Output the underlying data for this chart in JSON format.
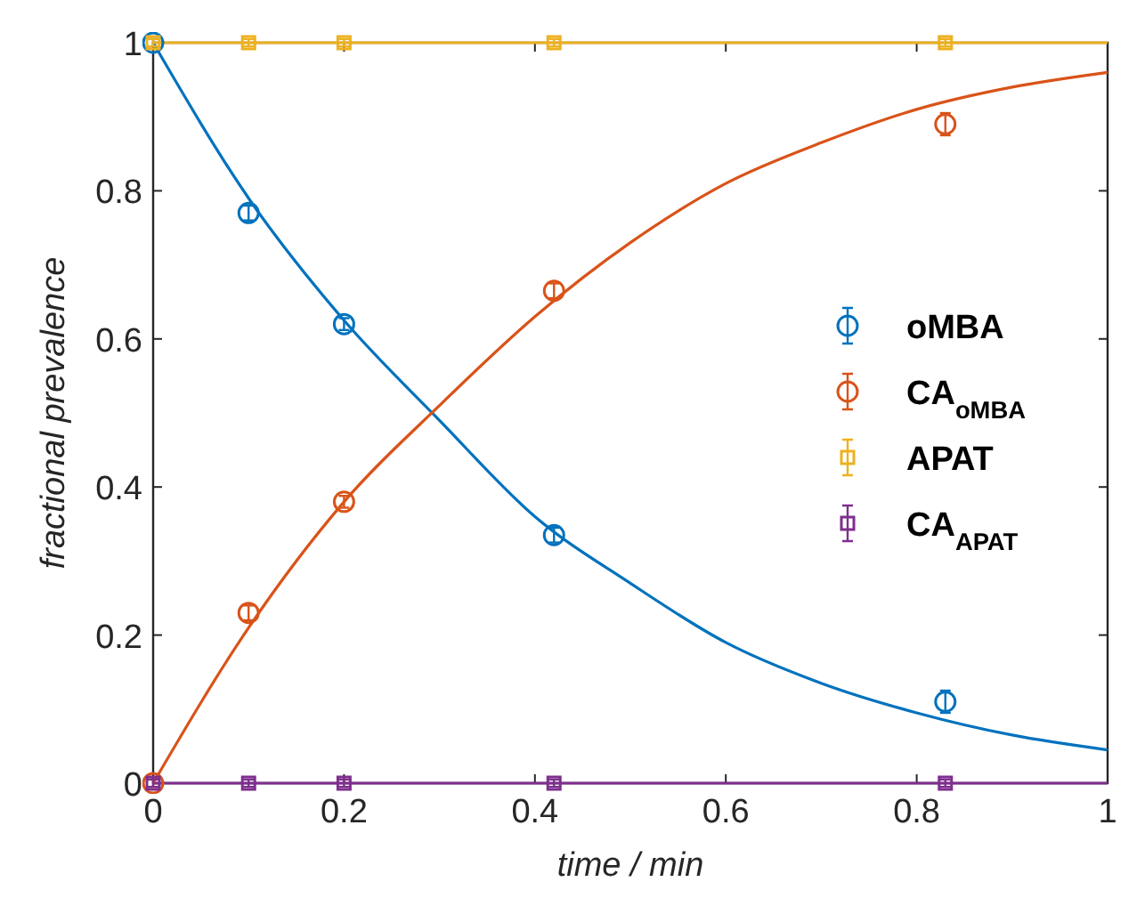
{
  "chart_data": {
    "type": "scatter",
    "xlabel": "time / min",
    "ylabel": "fractional prevalence",
    "xlim": [
      0,
      1
    ],
    "ylim": [
      0,
      1
    ],
    "xticks": [
      0,
      0.2,
      0.4,
      0.6,
      0.8,
      1
    ],
    "yticks": [
      0,
      0.2,
      0.4,
      0.6,
      0.8,
      1
    ],
    "grid": false,
    "legend": "right",
    "series": [
      {
        "type": "line",
        "color": "#0072bd",
        "x": [
          0,
          0.1,
          0.2,
          0.3,
          0.4,
          0.5,
          0.6,
          0.7,
          0.8,
          0.9,
          1
        ],
        "values": [
          1,
          0.79,
          0.625,
          0.49,
          0.36,
          0.27,
          0.19,
          0.135,
          0.095,
          0.065,
          0.045
        ]
      },
      {
        "type": "line",
        "color": "#d95319",
        "x": [
          0,
          0.1,
          0.2,
          0.3,
          0.4,
          0.5,
          0.6,
          0.7,
          0.8,
          0.9,
          1
        ],
        "values": [
          0,
          0.21,
          0.38,
          0.51,
          0.63,
          0.73,
          0.81,
          0.865,
          0.91,
          0.94,
          0.96
        ]
      },
      {
        "type": "line",
        "color": "#edb120",
        "x": [
          0,
          1
        ],
        "values": [
          1,
          1
        ]
      },
      {
        "type": "line",
        "color": "#7e2f8e",
        "x": [
          0,
          1
        ],
        "values": [
          0,
          0
        ]
      },
      {
        "name": "oMBA",
        "color": "#0072bd",
        "marker": "circle",
        "x": [
          0,
          0.1,
          0.2,
          0.42,
          0.83
        ],
        "values": [
          1,
          0.77,
          0.62,
          0.335,
          0.11
        ],
        "errors": [
          0.005,
          0.01,
          0.008,
          0.01,
          0.015
        ]
      },
      {
        "name": "CA$_{oMBA}$",
        "color": "#d95319",
        "marker": "circle",
        "x": [
          0,
          0.1,
          0.2,
          0.42,
          0.83
        ],
        "values": [
          0,
          0.23,
          0.38,
          0.665,
          0.89
        ],
        "errors": [
          0.005,
          0.01,
          0.008,
          0.01,
          0.015
        ]
      },
      {
        "name": "APAT",
        "color": "#edb120",
        "marker": "square",
        "x": [
          0,
          0.1,
          0.2,
          0.42,
          0.83
        ],
        "values": [
          1,
          1,
          1,
          1,
          1
        ],
        "errors": [
          0.005,
          0.005,
          0.005,
          0.005,
          0.005
        ]
      },
      {
        "name": "CA$_{APAT}$",
        "color": "#7e2f8e",
        "marker": "square",
        "x": [
          0,
          0.1,
          0.2,
          0.42,
          0.83
        ],
        "values": [
          0,
          0,
          0,
          0,
          0
        ],
        "errors": [
          0.005,
          0.005,
          0.005,
          0.005,
          0.005
        ]
      }
    ]
  }
}
